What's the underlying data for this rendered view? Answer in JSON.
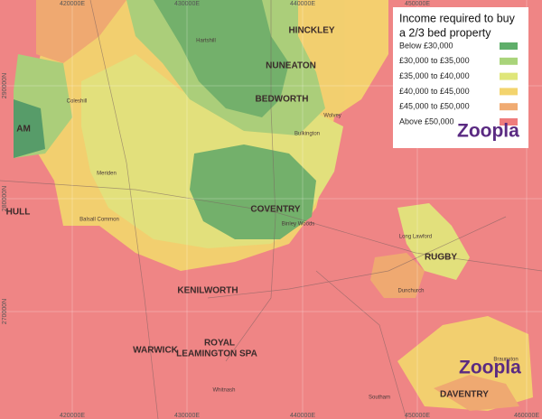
{
  "legend": {
    "title_line1": "Income required to buy",
    "title_line2": "a 2/3 bed property",
    "items": [
      {
        "label": "Below £30,000",
        "color": "#5fae6a"
      },
      {
        "label": "£30,000 to £35,000",
        "color": "#a9d47a"
      },
      {
        "label": "£35,000 to £40,000",
        "color": "#dfe67a"
      },
      {
        "label": "£40,000 to £45,000",
        "color": "#f3d46e"
      },
      {
        "label": "£45,000 to £50,000",
        "color": "#f0ab72"
      },
      {
        "label": "Above £50,000",
        "color": "#ef7c7c"
      }
    ]
  },
  "logo": "Zoopla",
  "watermark": "Zoopla",
  "grid": {
    "top": [
      "420000E",
      "430000E",
      "440000E",
      "450000E"
    ],
    "bottom": [
      "420000E",
      "430000E",
      "440000E",
      "450000E",
      "460000E"
    ],
    "left": [
      "290000N",
      "280000N",
      "270000N"
    ]
  },
  "places": [
    "HINCKLEY",
    "NUNEATON",
    "BEDWORTH",
    "COVENTRY",
    "KENILWORTH",
    "WARWICK",
    "ROYAL",
    "LEAMINGTON SPA",
    "RUGBY",
    "DAVENTRY",
    "AM",
    "HULL"
  ],
  "towns": [
    "Hartshill",
    "Coleshill",
    "Bulkington",
    "Meriden",
    "Balsall Common",
    "Dunchurch",
    "Wolvey",
    "Binley Woods",
    "Whitnash",
    "Southam",
    "Long Lawford",
    "Braunston"
  ]
}
